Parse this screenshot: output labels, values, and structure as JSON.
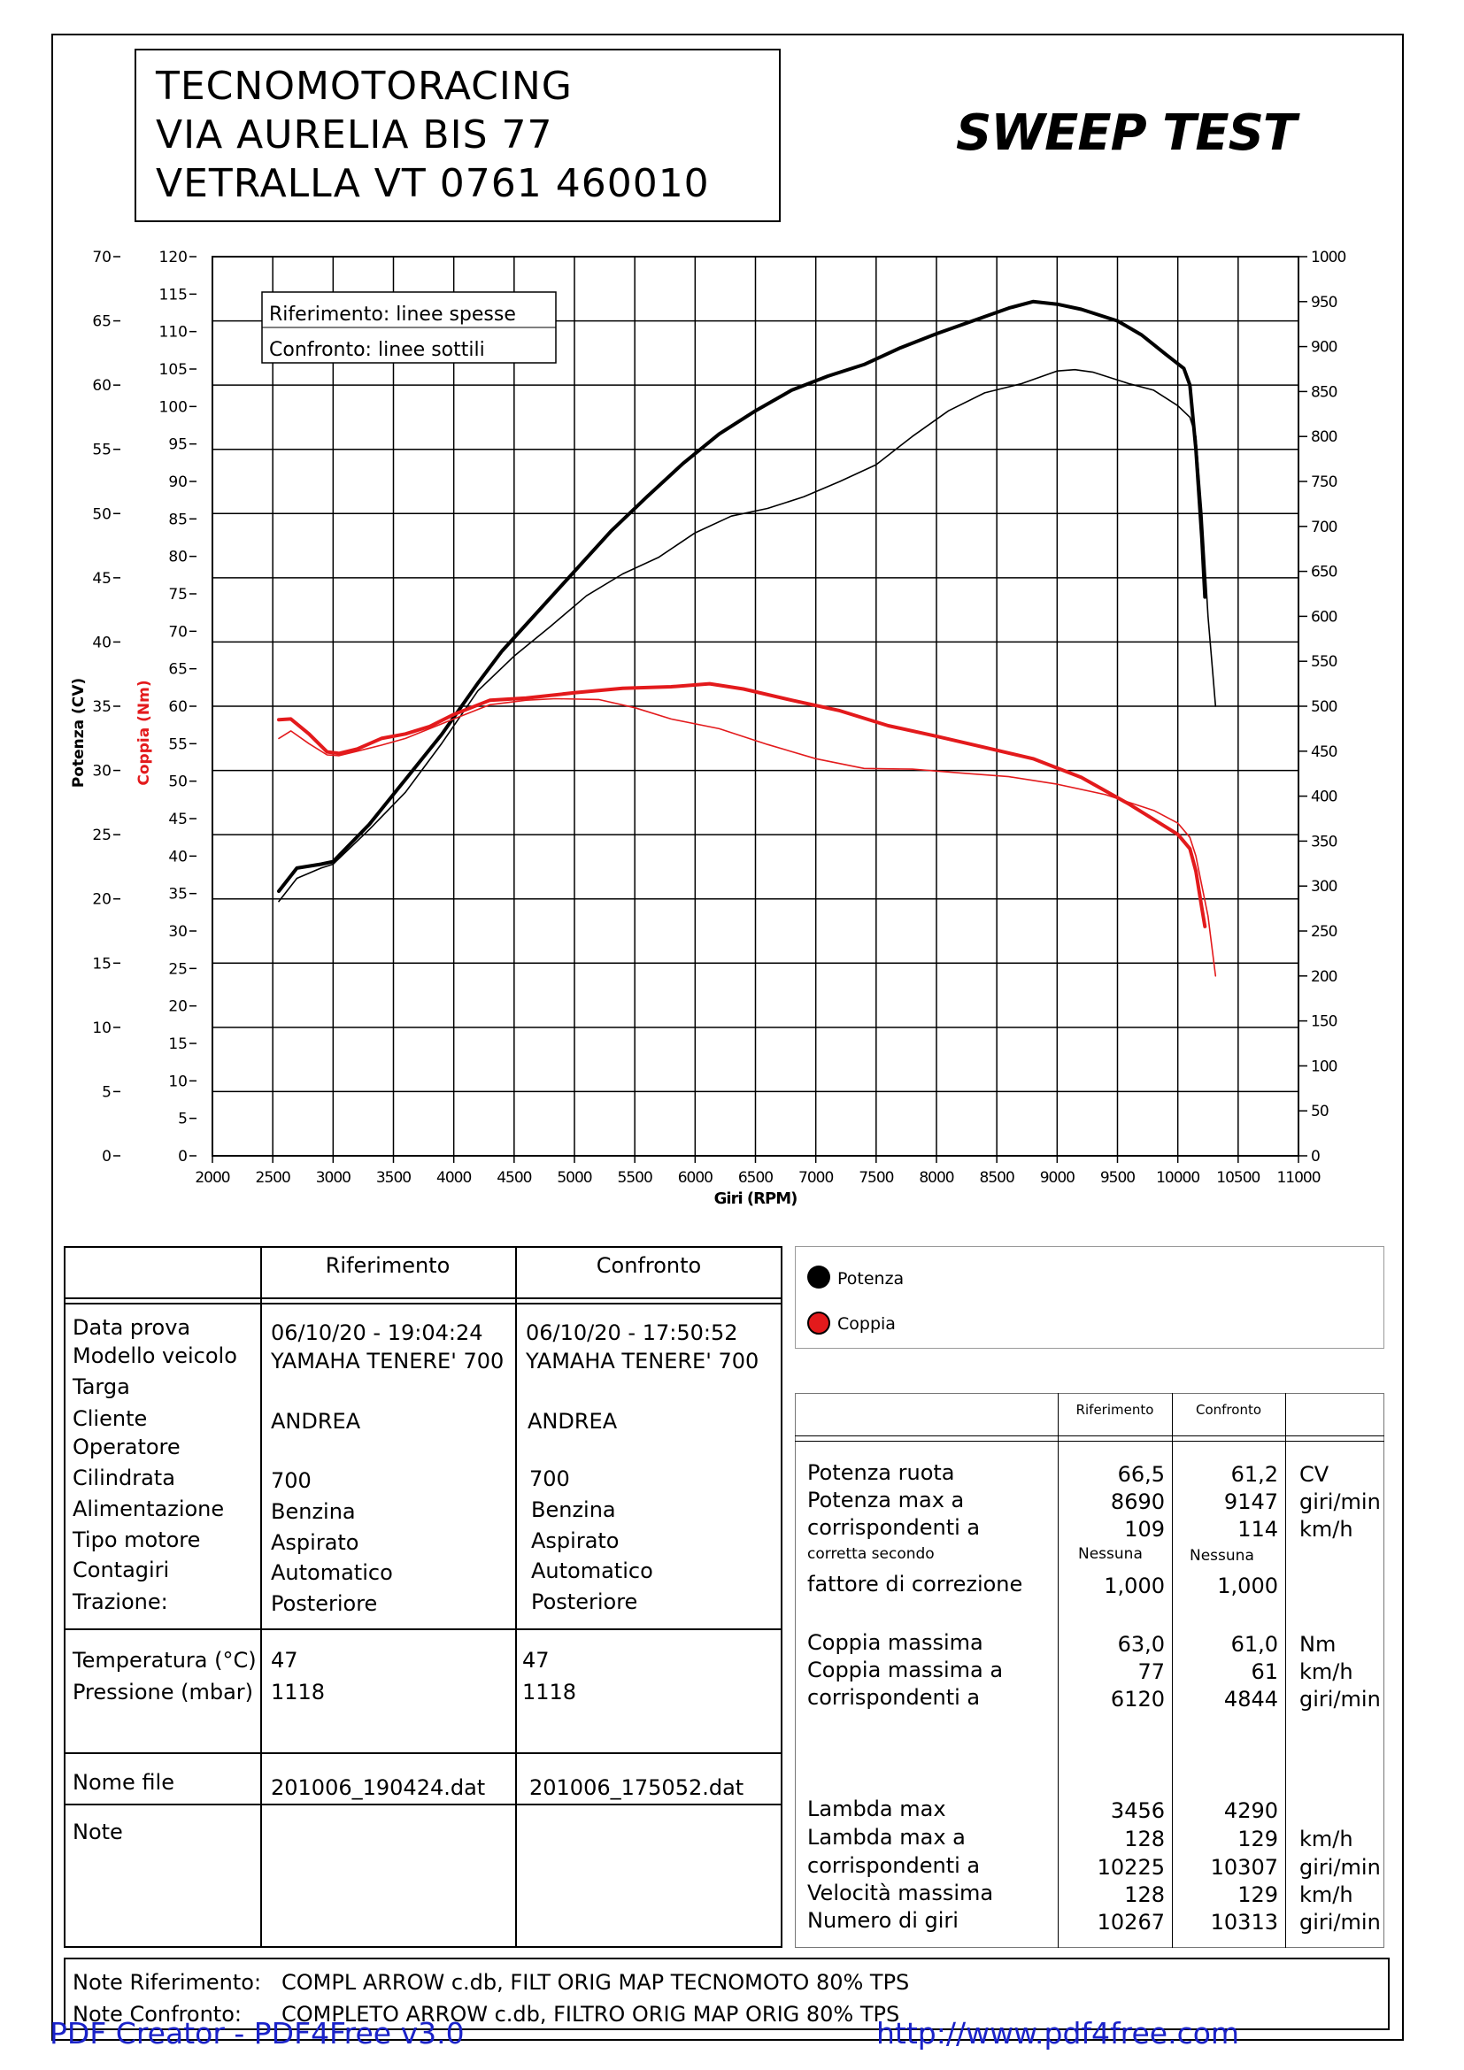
{
  "header": {
    "company_lines": [
      "TECNOMOTORACING",
      "VIA AURELIA BIS 77",
      "VETRALLA VT 0761 460010"
    ],
    "test_title": "SWEEP TEST"
  },
  "chart_data": {
    "type": "line",
    "xlabel": "Giri (RPM)",
    "xlim": [
      2000,
      11000
    ],
    "x_ticks": [
      "2000",
      "2500",
      "3000",
      "3500",
      "4000",
      "4500",
      "5000",
      "5500",
      "6000",
      "6500",
      "7000",
      "7500",
      "8000",
      "8500",
      "9000",
      "9500",
      "10000",
      "10500",
      "11000"
    ],
    "y_left_outer": {
      "label": "Potenza (CV)",
      "lim": [
        0,
        70
      ],
      "ticks": [
        "0",
        "5",
        "10",
        "15",
        "20",
        "25",
        "30",
        "35",
        "40",
        "45",
        "50",
        "55",
        "60",
        "65",
        "70"
      ]
    },
    "y_left_inner": {
      "label": "Coppia (Nm)",
      "lim": [
        0,
        120
      ],
      "ticks": [
        "0",
        "5",
        "10",
        "15",
        "20",
        "25",
        "30",
        "35",
        "40",
        "45",
        "50",
        "55",
        "60",
        "65",
        "70",
        "75",
        "80",
        "85",
        "90",
        "95",
        "100",
        "105",
        "110",
        "115",
        "120"
      ]
    },
    "y_right": {
      "lim": [
        0,
        1000
      ],
      "ticks": [
        "0",
        "50",
        "100",
        "150",
        "200",
        "250",
        "300",
        "350",
        "400",
        "450",
        "500",
        "550",
        "600",
        "650",
        "700",
        "750",
        "800",
        "850",
        "900",
        "950",
        "1000"
      ]
    },
    "grid": true,
    "legend": [
      "Riferimento: linee spesse",
      "Confronto: linee sottili"
    ],
    "series": [
      {
        "name": "Potenza",
        "run": "Riferimento",
        "color": "#000000",
        "axis": "potenza",
        "width": "thick",
        "x": [
          2550,
          2700,
          2900,
          3000,
          3300,
          3600,
          3900,
          4200,
          4400,
          4700,
          5000,
          5300,
          5600,
          5900,
          6200,
          6500,
          6800,
          7100,
          7400,
          7700,
          8000,
          8300,
          8600,
          8800,
          9000,
          9200,
          9500,
          9700,
          9900,
          10050,
          10100,
          10150,
          10200,
          10225
        ],
        "y": [
          20.6,
          22.4,
          22.7,
          22.9,
          25.8,
          29.3,
          32.8,
          36.8,
          39.3,
          42.4,
          45.5,
          48.6,
          51.3,
          53.9,
          56.2,
          58.0,
          59.6,
          60.7,
          61.6,
          62.9,
          64.0,
          65.0,
          66.0,
          66.5,
          66.3,
          65.9,
          65.0,
          63.9,
          62.4,
          61.3,
          60.0,
          55.0,
          48.0,
          43.5
        ]
      },
      {
        "name": "Potenza",
        "run": "Confronto",
        "color": "#000000",
        "axis": "potenza",
        "width": "thin",
        "x": [
          2550,
          2700,
          2900,
          3000,
          3300,
          3600,
          3900,
          4200,
          4500,
          4800,
          5100,
          5400,
          5700,
          6000,
          6300,
          6600,
          6900,
          7200,
          7500,
          7800,
          8100,
          8400,
          8700,
          9000,
          9147,
          9300,
          9600,
          9800,
          10000,
          10100,
          10150,
          10200,
          10250,
          10313
        ],
        "y": [
          19.8,
          21.6,
          22.4,
          22.7,
          25.4,
          28.3,
          32.1,
          36.2,
          38.9,
          41.2,
          43.6,
          45.3,
          46.6,
          48.5,
          49.8,
          50.4,
          51.3,
          52.5,
          53.8,
          56.0,
          58.0,
          59.4,
          60.1,
          61.1,
          61.2,
          61.0,
          60.1,
          59.6,
          58.4,
          57.5,
          56.0,
          50.0,
          42.0,
          35.0
        ]
      },
      {
        "name": "Coppia",
        "run": "Riferimento",
        "color": "#e31a1c",
        "axis": "coppia",
        "width": "thick",
        "x": [
          2550,
          2650,
          2800,
          2950,
          3050,
          3200,
          3400,
          3600,
          3800,
          4000,
          4300,
          4600,
          5000,
          5400,
          5800,
          6120,
          6400,
          6800,
          7200,
          7600,
          8000,
          8400,
          8800,
          9200,
          9600,
          10000,
          10100,
          10150,
          10200,
          10225
        ],
        "y": [
          58.2,
          58.3,
          56.3,
          53.9,
          53.7,
          54.3,
          55.7,
          56.3,
          57.3,
          58.9,
          60.8,
          61.1,
          61.8,
          62.4,
          62.6,
          63.0,
          62.3,
          60.8,
          59.4,
          57.4,
          56.0,
          54.5,
          53.0,
          50.5,
          46.9,
          42.9,
          41.0,
          38.0,
          33.0,
          30.6
        ]
      },
      {
        "name": "Coppia",
        "run": "Confronto",
        "color": "#e31a1c",
        "axis": "coppia",
        "width": "thin",
        "x": [
          2550,
          2650,
          2800,
          2950,
          3050,
          3200,
          3400,
          3600,
          3800,
          4000,
          4300,
          4600,
          4844,
          5200,
          5500,
          5800,
          6200,
          6600,
          7000,
          7400,
          7800,
          8200,
          8600,
          9000,
          9400,
          9800,
          10000,
          10100,
          10150,
          10200,
          10250,
          10313
        ],
        "y": [
          55.7,
          56.7,
          55.0,
          53.5,
          53.4,
          54.0,
          54.8,
          55.7,
          57.0,
          58.3,
          60.2,
          60.8,
          61.0,
          60.9,
          59.8,
          58.3,
          57.0,
          54.9,
          53.0,
          51.7,
          51.6,
          51.1,
          50.6,
          49.6,
          48.2,
          46.1,
          44.4,
          42.5,
          40.0,
          36.0,
          32.0,
          24.0
        ]
      }
    ]
  },
  "legend_box": {
    "items": [
      {
        "label": "Potenza",
        "color": "#000000"
      },
      {
        "label": "Coppia",
        "color": "#e31a1c"
      }
    ]
  },
  "info_table": {
    "col_ref": "Riferimento",
    "col_cmp": "Confronto",
    "rows": [
      {
        "label": "Data prova",
        "ref": "06/10/20 - 19:04:24",
        "cmp": "06/10/20 - 17:50:52"
      },
      {
        "label": "Modello veicolo",
        "ref": "YAMAHA TENERE' 700",
        "cmp": "YAMAHA TENERE' 700"
      },
      {
        "label": "Targa",
        "ref": "",
        "cmp": ""
      },
      {
        "label": "Cliente",
        "ref": "ANDREA",
        "cmp": "ANDREA"
      },
      {
        "label": "Operatore",
        "ref": "",
        "cmp": ""
      },
      {
        "label": "Cilindrata",
        "ref": "700",
        "cmp": "700"
      },
      {
        "label": "Alimentazione",
        "ref": "Benzina",
        "cmp": "Benzina"
      },
      {
        "label": "Tipo motore",
        "ref": "Aspirato",
        "cmp": "Aspirato"
      },
      {
        "label": "Contagiri",
        "ref": "Automatico",
        "cmp": "Automatico"
      },
      {
        "label": "Trazione:",
        "ref": "Posteriore",
        "cmp": "Posteriore"
      }
    ],
    "env_rows": [
      {
        "label": "Temperatura (°C)",
        "ref": "47",
        "cmp": "47"
      },
      {
        "label": "Pressione (mbar)",
        "ref": "1118",
        "cmp": "1118"
      }
    ],
    "file_row": {
      "label": "Nome file",
      "ref": "201006_190424.dat",
      "cmp": "201006_175052.dat"
    },
    "note_label": "Note"
  },
  "results_table": {
    "col_ref": "Riferimento",
    "col_cmp": "Confronto",
    "power_rows": [
      {
        "label": "Potenza ruota",
        "ref": "66,5",
        "cmp": "61,2",
        "unit": "CV"
      },
      {
        "label": "Potenza max a",
        "ref": "8690",
        "cmp": "9147",
        "unit": "giri/min"
      },
      {
        "label": "corrispondenti a",
        "ref": "109",
        "cmp": "114",
        "unit": "km/h"
      }
    ],
    "correction_label": "corretta secondo",
    "correction_ref": "Nessuna",
    "correction_cmp": "Nessuna",
    "factor_row": {
      "label": "fattore di correzione",
      "ref": "1,000",
      "cmp": "1,000"
    },
    "torque_rows": [
      {
        "label": "Coppia massima",
        "ref": "63,0",
        "cmp": "61,0",
        "unit": "Nm"
      },
      {
        "label": "Coppia massima a",
        "ref": "77",
        "cmp": "61",
        "unit": "km/h"
      },
      {
        "label": "corrispondenti a",
        "ref": "6120",
        "cmp": "4844",
        "unit": "giri/min"
      }
    ],
    "lambda_rows": [
      {
        "label": "Lambda max",
        "ref": "3456",
        "cmp": "4290",
        "unit": ""
      },
      {
        "label": "Lambda max a",
        "ref": "128",
        "cmp": "129",
        "unit": "km/h"
      },
      {
        "label": "corrispondenti a",
        "ref": "10225",
        "cmp": "10307",
        "unit": "giri/min"
      },
      {
        "label": "Velocità massima",
        "ref": "128",
        "cmp": "129",
        "unit": "km/h"
      },
      {
        "label": "Numero di giri",
        "ref": "10267",
        "cmp": "10313",
        "unit": "giri/min"
      }
    ]
  },
  "notes": {
    "ref_label": "Note Riferimento:",
    "ref_text": "COMPL ARROW c.db, FILT ORIG MAP TECNOMOTO 80% TPS",
    "cmp_label": "Note Confronto:",
    "cmp_text": "COMPLETO ARROW c.db, FILTRO ORIG MAP ORIG 80% TPS"
  },
  "watermark": {
    "left": "PDF Creator - PDF4Free v3.0",
    "right": "http://www.pdf4free.com"
  }
}
